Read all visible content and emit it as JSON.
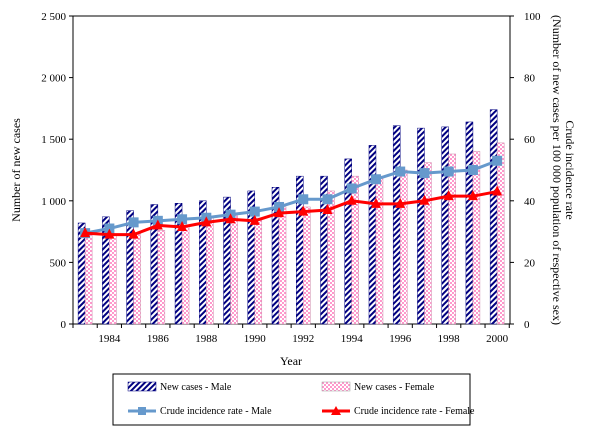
{
  "chart_data": {
    "type": "bar",
    "xlabel": "Year",
    "ylabel": "Number of new cases",
    "y2label_line1": "Crude incidence  rate",
    "y2label_line2": "(Number of new cases per 100 000 population of respective sex)",
    "ylim": [
      0,
      2500
    ],
    "y2lim": [
      0,
      100
    ],
    "y_ticks": [
      "0",
      "500",
      "1 000",
      "1 500",
      "2 000",
      "2 500"
    ],
    "y2_ticks": [
      "0",
      "20",
      "40",
      "60",
      "80",
      "100"
    ],
    "x": [
      1983,
      1984,
      1985,
      1986,
      1987,
      1988,
      1989,
      1990,
      1991,
      1992,
      1993,
      1994,
      1995,
      1996,
      1997,
      1998,
      1999,
      2000
    ],
    "x_tick_labels": [
      "1984",
      "1986",
      "1988",
      "1990",
      "1992",
      "1994",
      "1996",
      "1998",
      "2000"
    ],
    "grid": false,
    "legend_position": "bottom",
    "series": [
      {
        "name": "New cases - Male",
        "type": "bar",
        "axis": "left",
        "pattern": "diagonal-stripes",
        "color": "#000080",
        "values": [
          820,
          870,
          920,
          970,
          980,
          1000,
          1030,
          1080,
          1110,
          1200,
          1200,
          1340,
          1450,
          1610,
          1590,
          1600,
          1640,
          1740
        ]
      },
      {
        "name": "New cases - Female",
        "type": "bar",
        "axis": "left",
        "pattern": "checkered",
        "color": "#ff99cc",
        "values": [
          740,
          720,
          740,
          760,
          790,
          860,
          880,
          860,
          950,
          950,
          1080,
          1200,
          1200,
          1250,
          1310,
          1380,
          1400,
          1470
        ]
      },
      {
        "name": "Crude incidence rate - Male",
        "type": "line",
        "axis": "right",
        "marker": "square",
        "color": "#6699cc",
        "values": [
          29.5,
          31,
          33,
          33.5,
          34,
          34.5,
          35.5,
          36.5,
          38,
          40.5,
          40.5,
          44,
          47,
          49.5,
          49,
          49.5,
          50,
          53
        ]
      },
      {
        "name": "Crude incidence rate - Female",
        "type": "line",
        "axis": "right",
        "marker": "triangle",
        "color": "#ff0000",
        "values": [
          29.5,
          29,
          29,
          32,
          31.5,
          33,
          34,
          33.5,
          36,
          36.5,
          37,
          40,
          39,
          39,
          40,
          41.5,
          41.5,
          43
        ]
      }
    ]
  }
}
